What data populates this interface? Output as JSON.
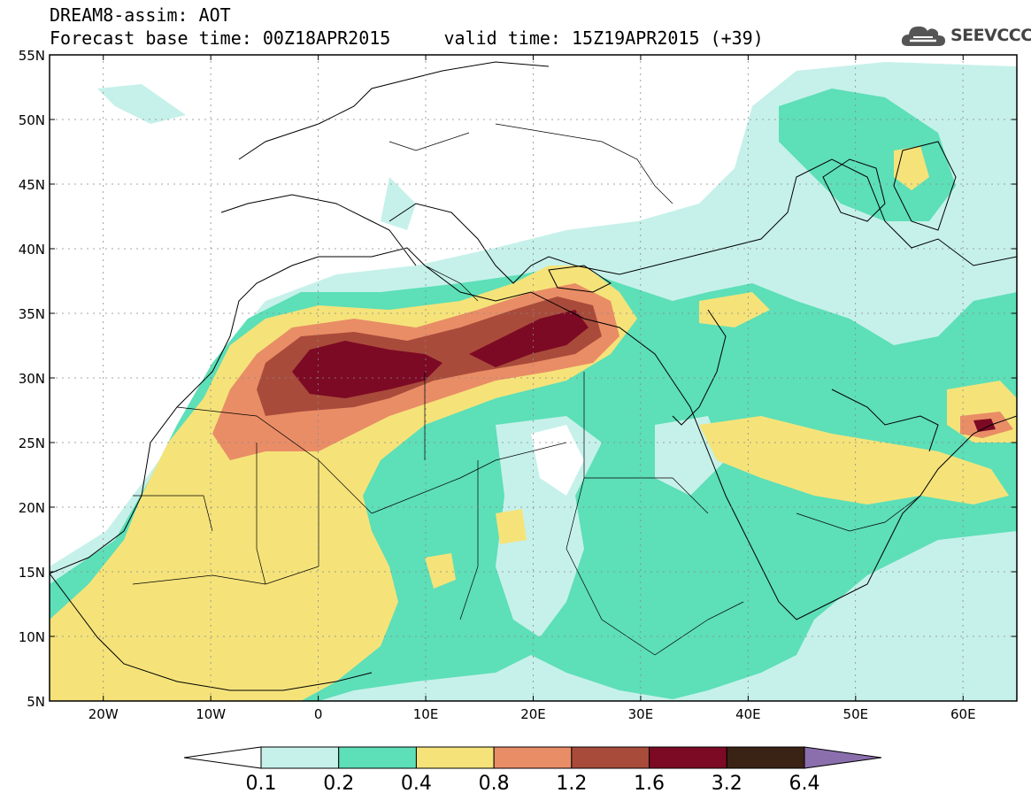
{
  "header": {
    "title_line1": "DREAM8-assim: AOT",
    "title_line2": "Forecast base time: 00Z18APR2015     valid time: 15Z19APR2015 (+39)"
  },
  "logo": {
    "text": "SEEVCCC",
    "icon": "cloud-icon"
  },
  "map": {
    "lat_labels": [
      "55N",
      "50N",
      "45N",
      "40N",
      "35N",
      "30N",
      "25N",
      "20N",
      "15N",
      "10N",
      "5N"
    ],
    "lon_labels": [
      "20W",
      "10W",
      "0",
      "10E",
      "20E",
      "30E",
      "40E",
      "50E",
      "60E"
    ],
    "lat_range": [
      5,
      55
    ],
    "lon_range": [
      -25,
      65
    ]
  },
  "legend": {
    "labels": [
      "0.1",
      "0.2",
      "0.4",
      "0.8",
      "1.2",
      "1.6",
      "3.2",
      "6.4"
    ],
    "colors": [
      "#ffffff",
      "#c6f1ea",
      "#5ddfb7",
      "#f5e37a",
      "#e98d66",
      "#a94b3b",
      "#7c0a24",
      "#3a2214",
      "#8b6fad"
    ]
  }
}
